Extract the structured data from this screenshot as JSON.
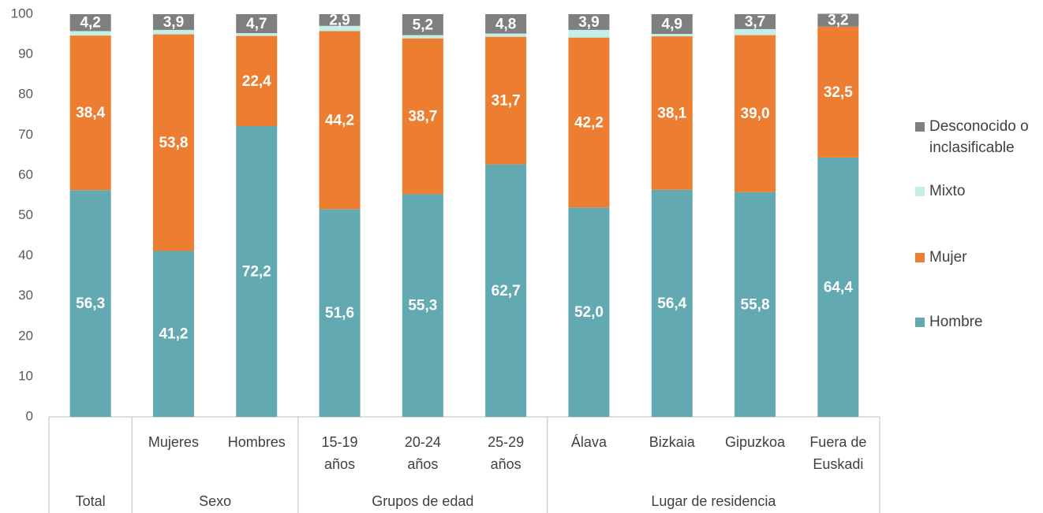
{
  "chart_data": {
    "type": "stacked_bar",
    "categories": [
      null,
      "Mujeres",
      "Hombres",
      "15-19 años",
      "20-24 años",
      "25-29 años",
      "Álava",
      "Bizkaia",
      "Gipuzkoa",
      "Fuera de Euskadi"
    ],
    "category_groups": [
      "Total",
      "Sexo",
      "Sexo",
      "Grupos de edad",
      "Grupos de edad",
      "Grupos de edad",
      "Lugar de residencia",
      "Lugar de residencia",
      "Lugar de residencia",
      "Lugar de residencia"
    ],
    "series": [
      {
        "name": "Hombre",
        "color": "#62a9b2",
        "values": [
          56.3,
          41.2,
          72.2,
          51.6,
          55.3,
          62.7,
          52.0,
          56.4,
          55.8,
          64.4
        ],
        "value_labels": [
          "56,3",
          "41,2",
          "72,2",
          "51,6",
          "55,3",
          "62,7",
          "52,0",
          "56,4",
          "55,8",
          "64,4"
        ]
      },
      {
        "name": "Mujer",
        "color": "#ed7d31",
        "values": [
          38.4,
          53.8,
          22.4,
          44.2,
          38.7,
          31.7,
          42.2,
          38.1,
          39.0,
          32.5
        ],
        "value_labels": [
          "38,4",
          "53,8",
          "22,4",
          "44,2",
          "38,7",
          "31,7",
          "42,2",
          "38,1",
          "39,0",
          "32,5"
        ]
      },
      {
        "name": "Mixto",
        "color": "#c4efe8",
        "values": [
          1.1,
          1.1,
          0.7,
          1.3,
          0.8,
          0.8,
          1.9,
          0.6,
          1.5,
          0
        ]
      },
      {
        "name": "Desconocido o inclasificable",
        "color": "#7f7f7f",
        "values": [
          4.2,
          3.9,
          4.7,
          2.9,
          5.2,
          4.8,
          3.9,
          4.9,
          3.7,
          3.2
        ],
        "value_labels": [
          "4,2",
          "3,9",
          "4,7",
          "2,9",
          "5,2",
          "4,8",
          "3,9",
          "4,9",
          "3,7",
          "3,2"
        ]
      }
    ],
    "ylim": [
      0,
      100
    ],
    "yticks": [
      0,
      10,
      20,
      30,
      40,
      50,
      60,
      70,
      80,
      90,
      100
    ],
    "grid": false,
    "legend": "right"
  }
}
